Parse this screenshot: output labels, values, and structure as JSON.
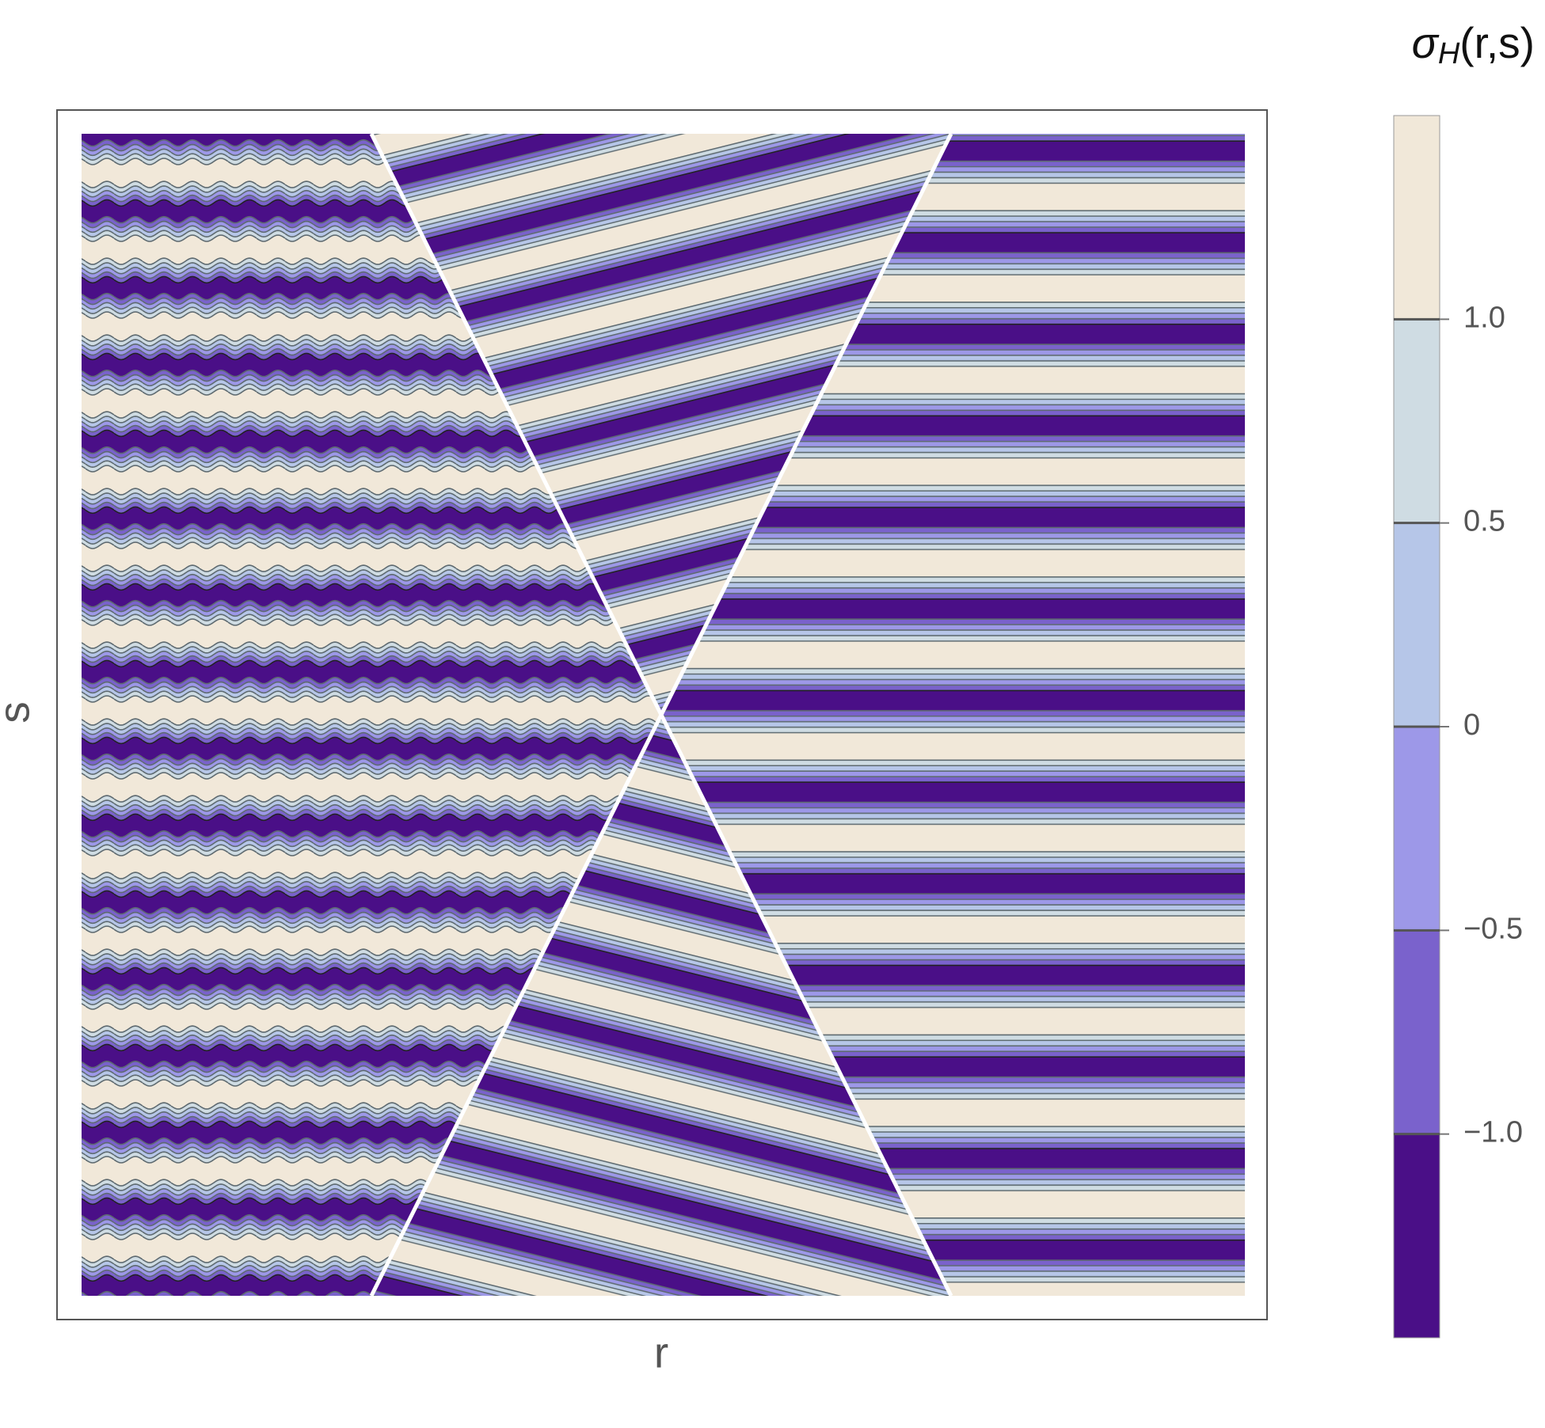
{
  "chart_data": {
    "type": "contour",
    "x_label": "r",
    "y_label": "s",
    "colorbar": {
      "title": {
        "symbol": "σ",
        "subscript": "H",
        "args": "(r,s)"
      },
      "levels": [
        -1.5,
        -1,
        -0.5,
        0,
        0.5,
        1,
        1.5
      ],
      "colors": [
        "#4a0f87",
        "#7a62cc",
        "#9d98e8",
        "#b6c6e8",
        "#cfdce3",
        "#f1e8d9"
      ],
      "clim": [
        -1.5,
        1.5
      ],
      "ticks": [
        {
          "value": -1,
          "label": "−1.0"
        },
        {
          "value": -0.5,
          "label": "−0.5"
        },
        0,
        0.5,
        {
          "value": 1,
          "label": "1.0"
        }
      ]
    }
  }
}
